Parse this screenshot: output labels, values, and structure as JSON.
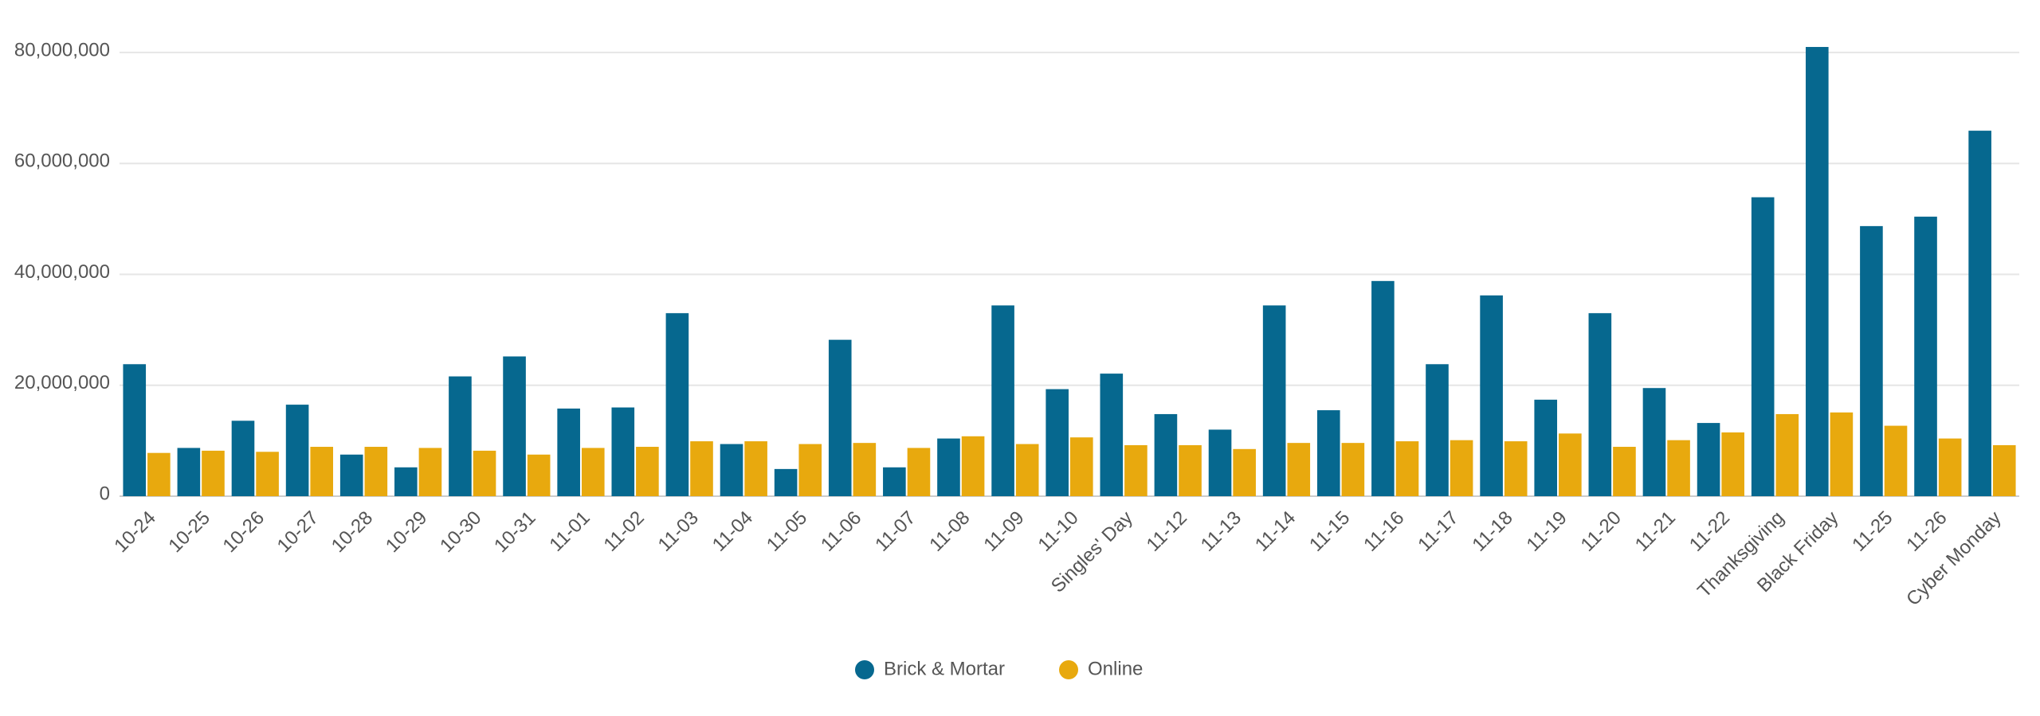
{
  "chart_data": {
    "type": "bar",
    "categories": [
      "10-24",
      "10-25",
      "10-26",
      "10-27",
      "10-28",
      "10-29",
      "10-30",
      "10-31",
      "11-01",
      "11-02",
      "11-03",
      "11-04",
      "11-05",
      "11-06",
      "11-07",
      "11-08",
      "11-09",
      "11-10",
      "Singles' Day",
      "11-12",
      "11-13",
      "11-14",
      "11-15",
      "11-16",
      "11-17",
      "11-18",
      "11-19",
      "11-20",
      "11-21",
      "11-22",
      "Thanksgiving",
      "Black Friday",
      "11-25",
      "11-26",
      "Cyber Monday"
    ],
    "series": [
      {
        "name": "Brick & Mortar",
        "color": "#06688f",
        "values": [
          23800000,
          8700000,
          13600000,
          16500000,
          7500000,
          5200000,
          21600000,
          25200000,
          15800000,
          16000000,
          33000000,
          9400000,
          4900000,
          28200000,
          5200000,
          10400000,
          34400000,
          19300000,
          22100000,
          14800000,
          12000000,
          34400000,
          15500000,
          38800000,
          23800000,
          36200000,
          17400000,
          33000000,
          19500000,
          13200000,
          53900000,
          81000000,
          48700000,
          50400000,
          65900000
        ]
      },
      {
        "name": "Online",
        "color": "#e8a90e",
        "values": [
          7800000,
          8200000,
          8000000,
          8900000,
          8900000,
          8700000,
          8200000,
          7500000,
          8700000,
          8900000,
          9900000,
          9900000,
          9400000,
          9600000,
          8700000,
          10800000,
          9400000,
          10600000,
          9200000,
          9200000,
          8500000,
          9600000,
          9600000,
          9900000,
          10100000,
          9900000,
          11300000,
          8900000,
          10100000,
          11500000,
          14800000,
          15100000,
          12700000,
          10400000,
          9200000
        ]
      }
    ],
    "ylim": [
      0,
      82000000
    ],
    "yticks": [
      0,
      {
        "value": 20000000,
        "label": "20,000,000"
      },
      {
        "value": 40000000,
        "label": "40,000,000"
      },
      {
        "value": 60000000,
        "label": "60,000,000"
      },
      {
        "value": 80000000,
        "label": "80,000,000"
      }
    ],
    "grid": true,
    "legend": "bottom"
  }
}
